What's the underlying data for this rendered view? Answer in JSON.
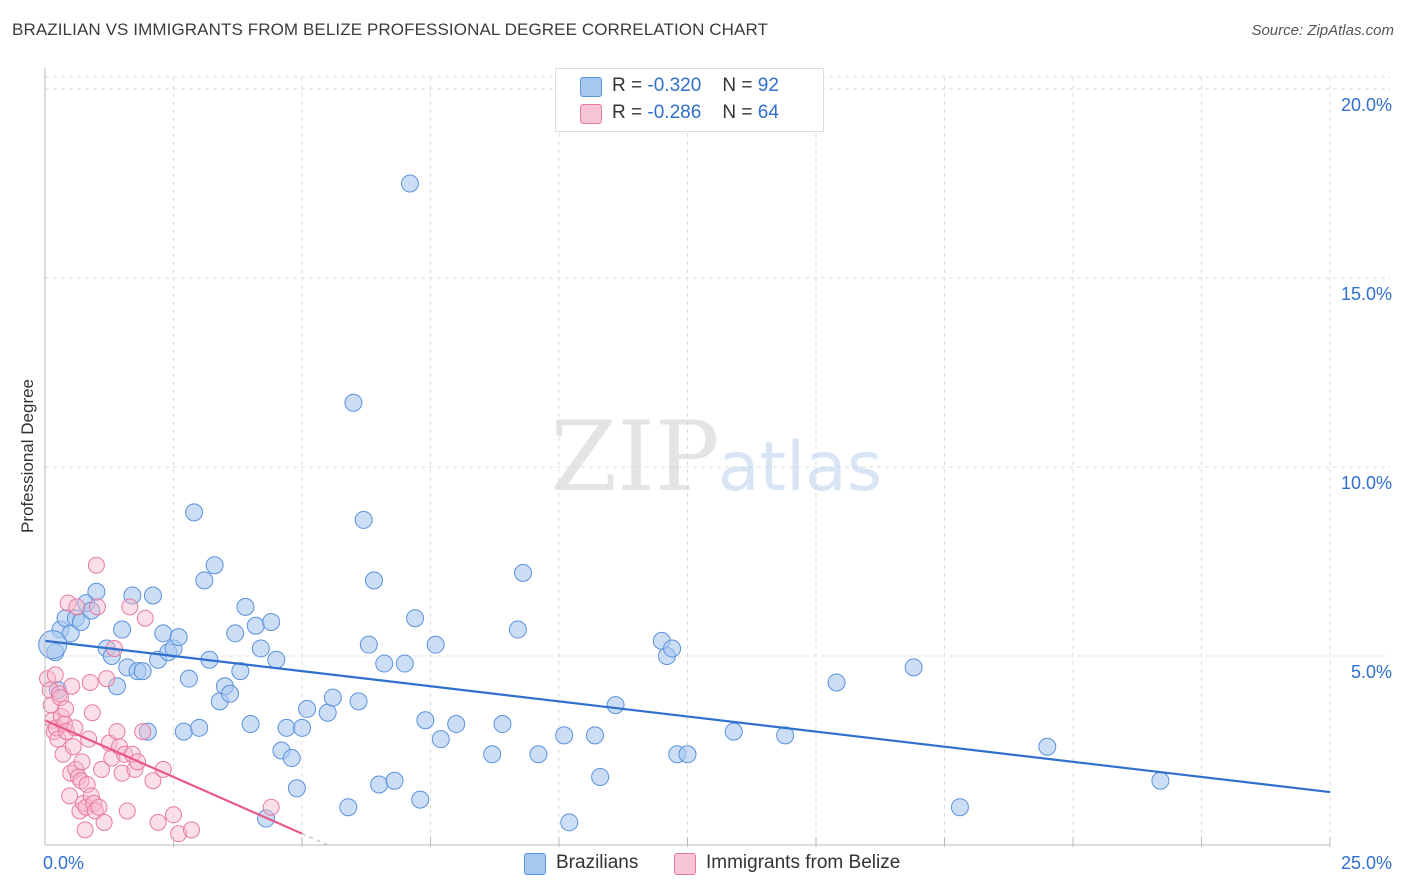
{
  "header": {
    "title": "BRAZILIAN VS IMMIGRANTS FROM BELIZE PROFESSIONAL DEGREE CORRELATION CHART",
    "source": "Source: ZipAtlas.com"
  },
  "watermark": {
    "zip": "ZIP",
    "atlas": "atlas"
  },
  "legend": {
    "r_label": "R =",
    "n_label": "N =",
    "series": [
      {
        "name": "Brazilians",
        "r": "-0.320",
        "n": "92",
        "color": "#a8c8f0",
        "stroke": "#5b92dc"
      },
      {
        "name": "Immigrants from Belize",
        "r": "-0.286",
        "n": "64",
        "color": "#f7b8cb",
        "stroke": "#e77aa0"
      }
    ]
  },
  "colors": {
    "blue_line": "#2f6fcd",
    "pink_line": "#e8588a",
    "axis_text": "#2f6fcd",
    "grid": "#dddddd"
  },
  "chart_data": {
    "type": "scatter",
    "title": "BRAZILIAN VS IMMIGRANTS FROM BELIZE PROFESSIONAL DEGREE CORRELATION CHART",
    "xlabel": "",
    "ylabel": "Professional Degree",
    "xlim": [
      0,
      25
    ],
    "ylim": [
      0,
      20
    ],
    "x_tick_labels": [
      "0.0%",
      "25.0%"
    ],
    "y_ticks": [
      5,
      10,
      15,
      20
    ],
    "y_tick_labels": [
      "5.0%",
      "10.0%",
      "15.0%",
      "20.0%"
    ],
    "grid": true,
    "legend_position": "top-center",
    "series": [
      {
        "name": "Brazilians",
        "trend": {
          "x": [
            0,
            25
          ],
          "y": [
            5.4,
            1.4
          ]
        },
        "points": [
          [
            0.2,
            5.1
          ],
          [
            0.3,
            5.7
          ],
          [
            0.4,
            6.0
          ],
          [
            0.5,
            5.6
          ],
          [
            0.6,
            6.0
          ],
          [
            0.7,
            5.9
          ],
          [
            0.8,
            6.4
          ],
          [
            0.9,
            6.2
          ],
          [
            1.0,
            6.7
          ],
          [
            1.2,
            5.2
          ],
          [
            1.3,
            5.0
          ],
          [
            1.4,
            4.2
          ],
          [
            1.5,
            5.7
          ],
          [
            1.6,
            4.7
          ],
          [
            1.7,
            6.6
          ],
          [
            1.8,
            4.6
          ],
          [
            1.9,
            4.6
          ],
          [
            2.0,
            3.0
          ],
          [
            2.1,
            6.6
          ],
          [
            2.2,
            4.9
          ],
          [
            2.3,
            5.6
          ],
          [
            2.4,
            5.1
          ],
          [
            2.5,
            5.2
          ],
          [
            2.6,
            5.5
          ],
          [
            2.7,
            3.0
          ],
          [
            2.8,
            4.4
          ],
          [
            2.9,
            8.8
          ],
          [
            3.0,
            3.1
          ],
          [
            3.1,
            7.0
          ],
          [
            3.2,
            4.9
          ],
          [
            3.3,
            7.4
          ],
          [
            3.4,
            3.8
          ],
          [
            3.5,
            4.2
          ],
          [
            3.6,
            4.0
          ],
          [
            3.7,
            5.6
          ],
          [
            3.8,
            4.6
          ],
          [
            3.9,
            6.3
          ],
          [
            4.0,
            3.2
          ],
          [
            4.1,
            5.8
          ],
          [
            4.2,
            5.2
          ],
          [
            4.3,
            0.7
          ],
          [
            4.4,
            5.9
          ],
          [
            4.5,
            4.9
          ],
          [
            4.6,
            2.5
          ],
          [
            4.7,
            3.1
          ],
          [
            4.8,
            2.3
          ],
          [
            4.9,
            1.5
          ],
          [
            5.0,
            3.1
          ],
          [
            5.1,
            3.6
          ],
          [
            5.5,
            3.5
          ],
          [
            5.6,
            3.9
          ],
          [
            5.9,
            1.0
          ],
          [
            6.0,
            11.7
          ],
          [
            6.1,
            3.8
          ],
          [
            6.2,
            8.6
          ],
          [
            6.3,
            5.3
          ],
          [
            6.4,
            7.0
          ],
          [
            6.5,
            1.6
          ],
          [
            6.6,
            4.8
          ],
          [
            6.8,
            1.7
          ],
          [
            7.0,
            4.8
          ],
          [
            7.2,
            6.0
          ],
          [
            7.3,
            1.2
          ],
          [
            7.4,
            3.3
          ],
          [
            7.6,
            5.3
          ],
          [
            7.7,
            2.8
          ],
          [
            7.1,
            17.5
          ],
          [
            8.0,
            3.2
          ],
          [
            8.7,
            2.4
          ],
          [
            8.9,
            3.2
          ],
          [
            9.2,
            5.7
          ],
          [
            9.3,
            7.2
          ],
          [
            9.6,
            2.4
          ],
          [
            10.1,
            2.9
          ],
          [
            10.2,
            0.6
          ],
          [
            10.7,
            2.9
          ],
          [
            10.8,
            1.8
          ],
          [
            11.1,
            3.7
          ],
          [
            12.0,
            5.4
          ],
          [
            12.1,
            5.0
          ],
          [
            12.2,
            5.2
          ],
          [
            12.3,
            2.4
          ],
          [
            12.5,
            2.4
          ],
          [
            13.4,
            3.0
          ],
          [
            14.4,
            2.9
          ],
          [
            15.4,
            4.3
          ],
          [
            16.9,
            4.7
          ],
          [
            17.8,
            1.0
          ],
          [
            19.5,
            2.6
          ],
          [
            21.7,
            1.7
          ],
          [
            0.15,
            5.3
          ],
          [
            0.25,
            4.1
          ]
        ]
      },
      {
        "name": "Immigrants from Belize",
        "trend": {
          "x": [
            0,
            5
          ],
          "y": [
            3.3,
            0.3
          ]
        },
        "points": [
          [
            0.05,
            4.4
          ],
          [
            0.1,
            4.1
          ],
          [
            0.12,
            3.7
          ],
          [
            0.15,
            3.3
          ],
          [
            0.18,
            3.0
          ],
          [
            0.2,
            4.5
          ],
          [
            0.22,
            3.1
          ],
          [
            0.25,
            2.8
          ],
          [
            0.28,
            4.0
          ],
          [
            0.3,
            3.9
          ],
          [
            0.32,
            3.4
          ],
          [
            0.35,
            2.4
          ],
          [
            0.38,
            3.2
          ],
          [
            0.4,
            3.6
          ],
          [
            0.42,
            3.0
          ],
          [
            0.45,
            6.4
          ],
          [
            0.48,
            1.3
          ],
          [
            0.5,
            1.9
          ],
          [
            0.52,
            4.2
          ],
          [
            0.55,
            2.6
          ],
          [
            0.58,
            3.1
          ],
          [
            0.6,
            2.0
          ],
          [
            0.62,
            6.3
          ],
          [
            0.65,
            1.8
          ],
          [
            0.68,
            0.9
          ],
          [
            0.7,
            1.7
          ],
          [
            0.72,
            2.2
          ],
          [
            0.75,
            1.1
          ],
          [
            0.78,
            0.4
          ],
          [
            0.8,
            1.0
          ],
          [
            0.82,
            1.6
          ],
          [
            0.85,
            2.8
          ],
          [
            0.88,
            4.3
          ],
          [
            0.9,
            1.3
          ],
          [
            0.92,
            3.5
          ],
          [
            0.95,
            1.1
          ],
          [
            0.98,
            0.9
          ],
          [
            1.0,
            7.4
          ],
          [
            1.02,
            6.3
          ],
          [
            1.05,
            1.0
          ],
          [
            1.1,
            2.0
          ],
          [
            1.15,
            0.6
          ],
          [
            1.2,
            4.4
          ],
          [
            1.25,
            2.7
          ],
          [
            1.3,
            2.3
          ],
          [
            1.35,
            5.2
          ],
          [
            1.4,
            3.0
          ],
          [
            1.45,
            2.6
          ],
          [
            1.5,
            1.9
          ],
          [
            1.55,
            2.4
          ],
          [
            1.6,
            0.9
          ],
          [
            1.65,
            6.3
          ],
          [
            1.7,
            2.4
          ],
          [
            1.75,
            2.0
          ],
          [
            1.8,
            2.2
          ],
          [
            1.9,
            3.0
          ],
          [
            1.95,
            6.0
          ],
          [
            2.1,
            1.7
          ],
          [
            2.2,
            0.6
          ],
          [
            2.3,
            2.0
          ],
          [
            2.5,
            0.8
          ],
          [
            2.6,
            0.3
          ],
          [
            2.85,
            0.4
          ],
          [
            4.4,
            1.0
          ]
        ]
      }
    ]
  }
}
